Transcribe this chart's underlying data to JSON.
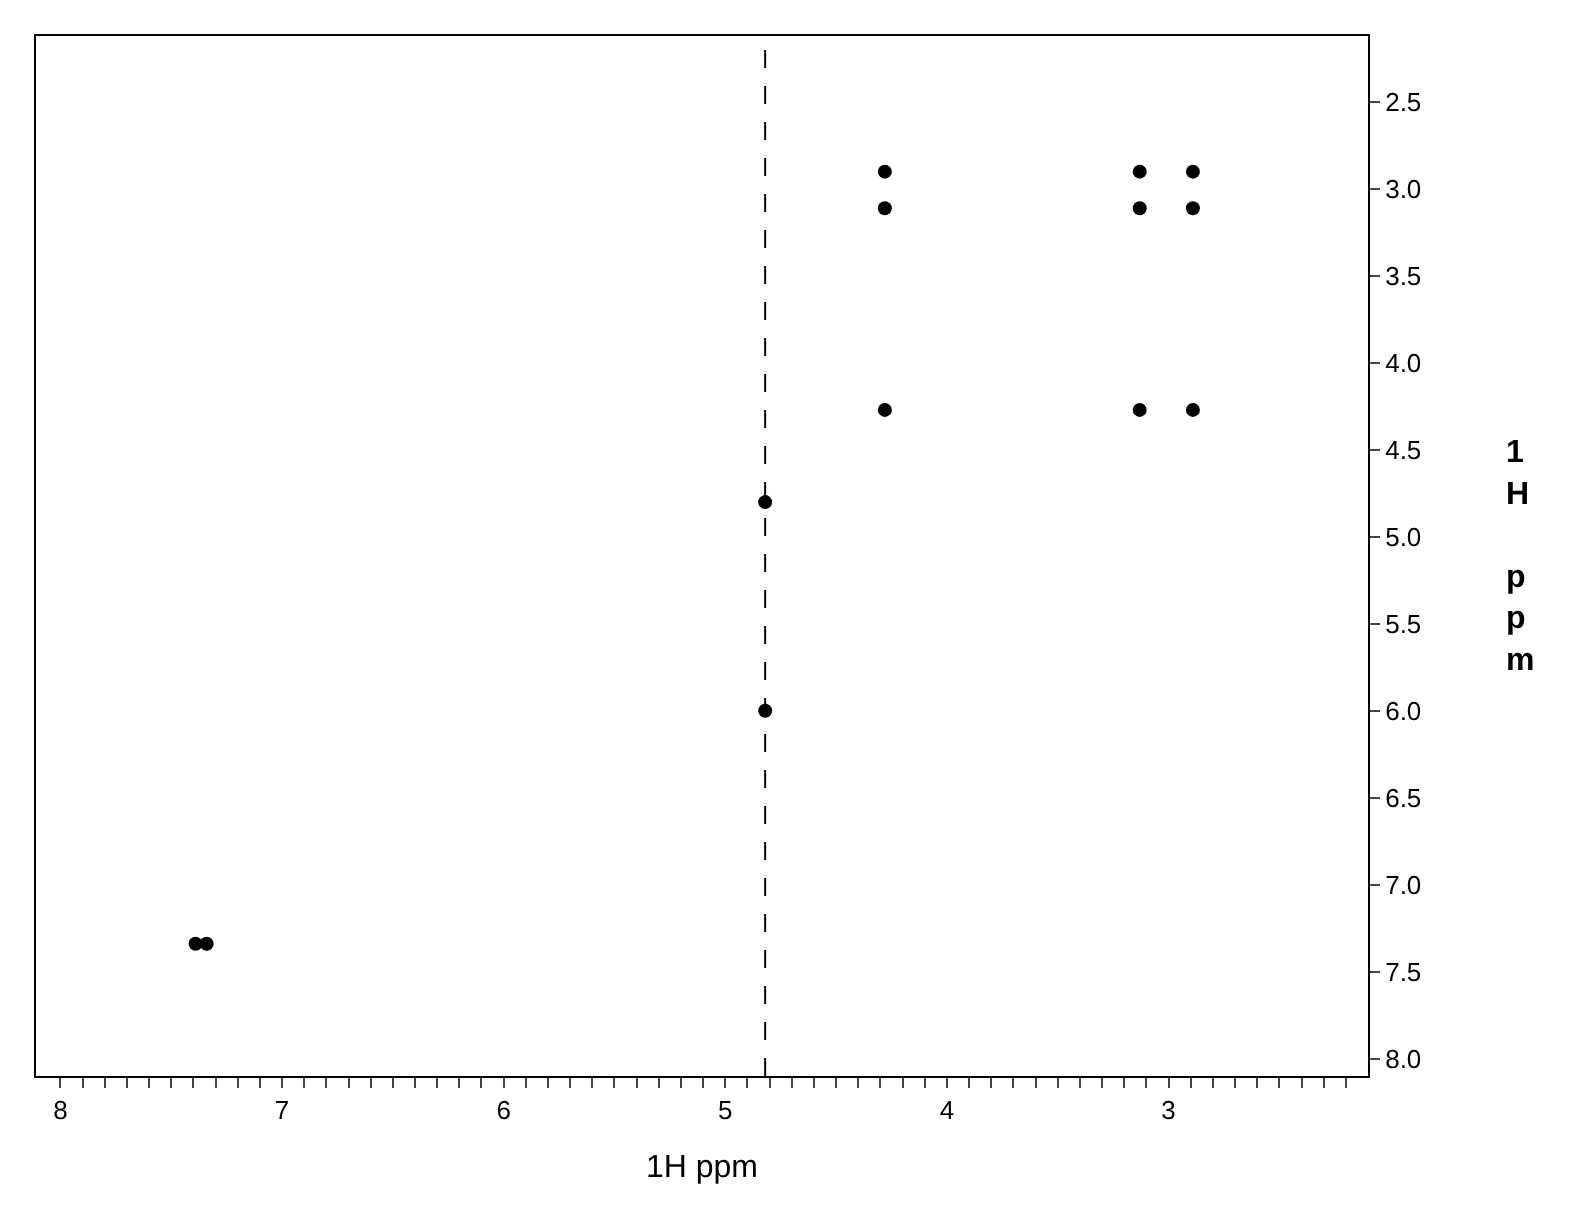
{
  "chart_data": {
    "type": "scatter",
    "xlabel": "1H ppm",
    "ylabel": "1H ppm",
    "series": [
      {
        "color": "#000000",
        "x": [
          4.28,
          4.28,
          4.28,
          3.13,
          3.13,
          3.13,
          2.89,
          2.89,
          2.89,
          4.82,
          7.39,
          7.34,
          4.82
        ],
        "values": [
          2.9,
          3.11,
          4.27,
          2.9,
          3.11,
          4.27,
          2.9,
          3.11,
          4.27,
          4.8,
          7.34,
          7.34,
          6.0
        ]
      }
    ],
    "xlim": [
      8.11,
      2.1
    ],
    "xticks": [
      8,
      {
        "value": 7.9,
        "label": null
      },
      {
        "value": 7.8,
        "label": null
      },
      {
        "value": 7.7,
        "label": null
      },
      {
        "value": 7.6,
        "label": null
      },
      {
        "value": 7.5,
        "label": null
      },
      {
        "value": 7.4,
        "label": null
      },
      {
        "value": 7.3,
        "label": null
      },
      {
        "value": 7.2,
        "label": null
      },
      {
        "value": 7.1,
        "label": null
      },
      7,
      {
        "value": 6.9,
        "label": null
      },
      {
        "value": 6.8,
        "label": null
      },
      {
        "value": 6.7,
        "label": null
      },
      {
        "value": 6.6,
        "label": null
      },
      {
        "value": 6.5,
        "label": null
      },
      {
        "value": 6.4,
        "label": null
      },
      {
        "value": 6.3,
        "label": null
      },
      {
        "value": 6.2,
        "label": null
      },
      {
        "value": 6.1,
        "label": null
      },
      6,
      {
        "value": 5.9,
        "label": null
      },
      {
        "value": 5.8,
        "label": null
      },
      {
        "value": 5.7,
        "label": null
      },
      {
        "value": 5.6,
        "label": null
      },
      {
        "value": 5.5,
        "label": null
      },
      {
        "value": 5.4,
        "label": null
      },
      {
        "value": 5.3,
        "label": null
      },
      {
        "value": 5.2,
        "label": null
      },
      {
        "value": 5.1,
        "label": null
      },
      5,
      {
        "value": 4.9,
        "label": null
      },
      {
        "value": 4.8,
        "label": null
      },
      {
        "value": 4.7,
        "label": null
      },
      {
        "value": 4.6,
        "label": null
      },
      {
        "value": 4.5,
        "label": null
      },
      {
        "value": 4.4,
        "label": null
      },
      {
        "value": 4.3,
        "label": null
      },
      {
        "value": 4.2,
        "label": null
      },
      {
        "value": 4.1,
        "label": null
      },
      4,
      {
        "value": 3.9,
        "label": null
      },
      {
        "value": 3.8,
        "label": null
      },
      {
        "value": 3.7,
        "label": null
      },
      {
        "value": 3.6,
        "label": null
      },
      {
        "value": 3.5,
        "label": null
      },
      {
        "value": 3.4,
        "label": null
      },
      {
        "value": 3.3,
        "label": null
      },
      {
        "value": 3.2,
        "label": null
      },
      {
        "value": 3.1,
        "label": null
      },
      3,
      {
        "value": 2.9,
        "label": null
      },
      {
        "value": 2.8,
        "label": null
      },
      {
        "value": 2.7,
        "label": null
      },
      {
        "value": 2.6,
        "label": null
      },
      {
        "value": 2.5,
        "label": null
      },
      {
        "value": 2.4,
        "label": null
      },
      {
        "value": 2.3,
        "label": null
      },
      {
        "value": 2.2,
        "label": null
      }
    ],
    "ylim": [
      8.1,
      2.12
    ],
    "yticks": [
      {
        "value": 2.5,
        "label": "2.5"
      },
      {
        "value": 3,
        "label": "3.0"
      },
      {
        "value": 3.5,
        "label": "3.5"
      },
      {
        "value": 4,
        "label": "4.0"
      },
      {
        "value": 4.5,
        "label": "4.5"
      },
      {
        "value": 5,
        "label": "5.0"
      },
      {
        "value": 5.5,
        "label": "5.5"
      },
      {
        "value": 6,
        "label": "6.0"
      },
      {
        "value": 6.5,
        "label": "6.5"
      },
      {
        "value": 7,
        "label": "7.0"
      },
      {
        "value": 7.5,
        "label": "7.5"
      },
      {
        "value": 8,
        "label": "8.0"
      }
    ],
    "ref_lines": [
      {
        "axis": "x",
        "value": 4.82,
        "color": "#000000",
        "line_style": "dashed"
      }
    ],
    "marker": "circle"
  }
}
